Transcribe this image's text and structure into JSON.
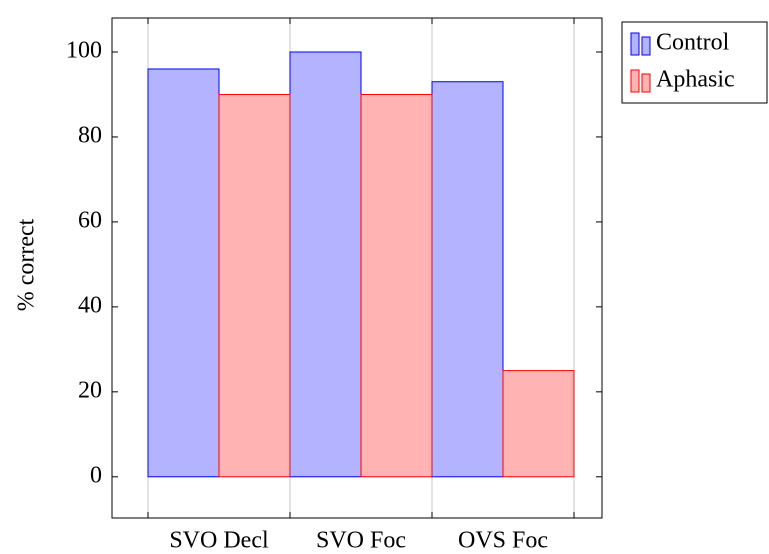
{
  "chart_data": {
    "type": "bar",
    "ylabel": "% correct",
    "categories": [
      "SVO Decl",
      "SVO Foc",
      "OVS Foc"
    ],
    "series": [
      {
        "name": "Control",
        "color": "#b3b3ff",
        "edge": "#0000ff",
        "values": [
          96,
          100,
          93
        ]
      },
      {
        "name": "Aphasic",
        "color": "#ffb3b3",
        "edge": "#ff0000",
        "values": [
          90,
          90,
          25
        ]
      }
    ],
    "ylim": [
      -9.7,
      108
    ],
    "yticks": [
      0,
      20,
      40,
      60,
      80,
      100
    ],
    "xgrid": true,
    "legend": "outer north east"
  }
}
